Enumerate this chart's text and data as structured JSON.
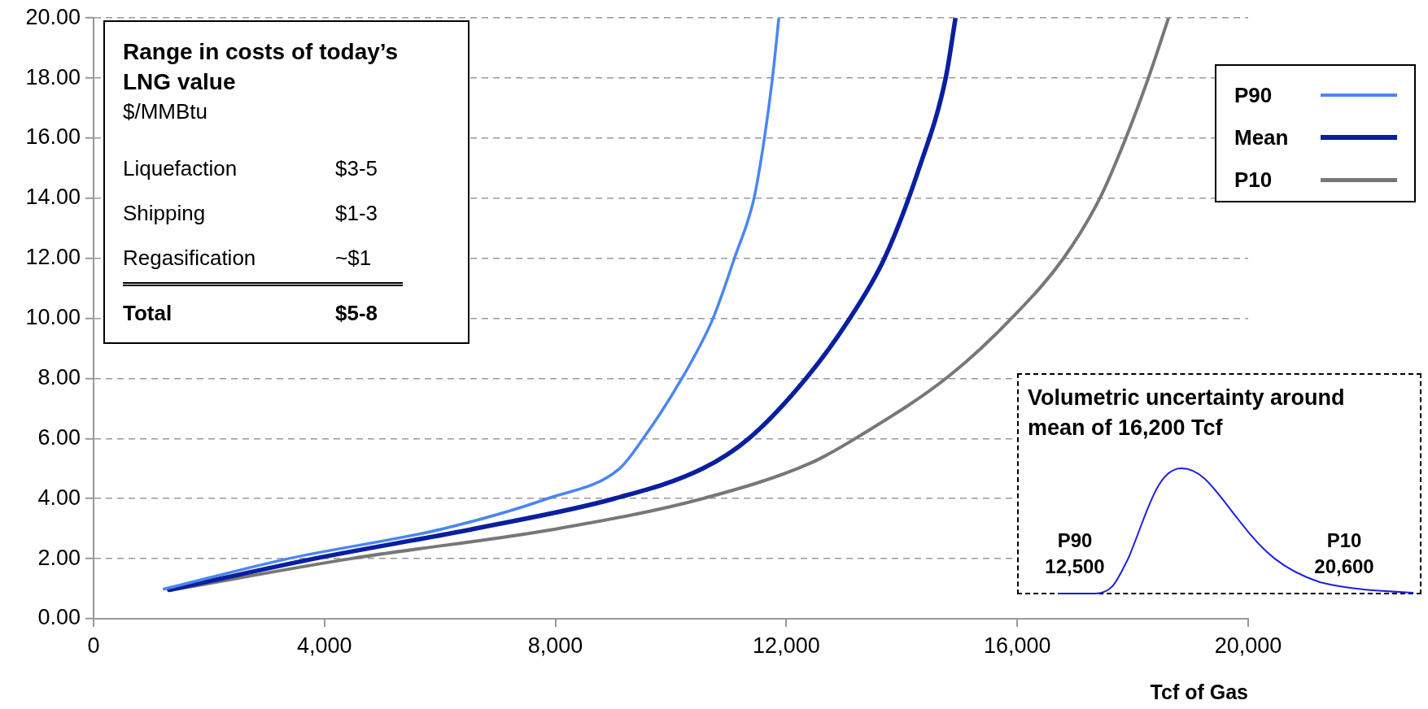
{
  "chart_data": {
    "type": "line",
    "xlabel": "Tcf of Gas",
    "annotations": [
      "Range in costs of today’s LNG value",
      "$/MMBtu",
      "Liquefaction",
      "$3-5",
      "Shipping",
      "$1-3",
      "Regasification",
      "~$1",
      "Total",
      "$5-8",
      "Volumetric uncertainty around mean of 16,200 Tcf",
      "P90",
      "12,500",
      "P10",
      "20,600"
    ],
    "series": [
      {
        "name": "P90",
        "color": "#4a86f0",
        "x": [
          1220,
          3370,
          6060,
          7860,
          9110,
          9520,
          10190,
          10730,
          11100,
          11440,
          11620,
          11760,
          11870
        ],
        "values": [
          0.99,
          2,
          3,
          4,
          5,
          6,
          8,
          10,
          12,
          14,
          16,
          18,
          20
        ]
      },
      {
        "name": "Mean",
        "color": "#0a1fa0",
        "x": [
          1310,
          3820,
          6600,
          9020,
          10550,
          11350,
          12340,
          13100,
          13700,
          14300,
          14760,
          14930
        ],
        "values": [
          0.96,
          2,
          3,
          4,
          5,
          6,
          8,
          10,
          12,
          15,
          18,
          20
        ]
      },
      {
        "name": "P10",
        "color": "#777777",
        "x": [
          1360,
          4450,
          8040,
          10550,
          12440,
          13280,
          14830,
          15950,
          16800,
          17430,
          17880,
          18270,
          18620
        ],
        "values": [
          0.96,
          2,
          3,
          4,
          5.2,
          6.1,
          8.1,
          10.1,
          12,
          14,
          16,
          18,
          20
        ]
      }
    ],
    "xlim": [
      0,
      20000
    ],
    "xticks": [
      {
        "value": 0,
        "label": "0"
      },
      {
        "value": 4000,
        "label": "4,000"
      },
      {
        "value": 8000,
        "label": "8,000"
      },
      {
        "value": 12000,
        "label": "12,000"
      },
      {
        "value": 16000,
        "label": "16,000"
      },
      {
        "value": 20000,
        "label": "20,000"
      }
    ],
    "ylim": [
      0,
      20
    ],
    "yticks": [
      {
        "value": 0,
        "label": "0.00"
      },
      {
        "value": 2,
        "label": "2.00"
      },
      {
        "value": 4,
        "label": "4.00"
      },
      {
        "value": 6,
        "label": "6.00"
      },
      {
        "value": 8,
        "label": "8.00"
      },
      {
        "value": 10,
        "label": "10.00"
      },
      {
        "value": 12,
        "label": "12.00"
      },
      {
        "value": 14,
        "label": "14.00"
      },
      {
        "value": 16,
        "label": "16.00"
      },
      {
        "value": 18,
        "label": "18.00"
      },
      {
        "value": 20,
        "label": "20.00"
      }
    ],
    "grid": "y",
    "legend": "top right"
  }
}
